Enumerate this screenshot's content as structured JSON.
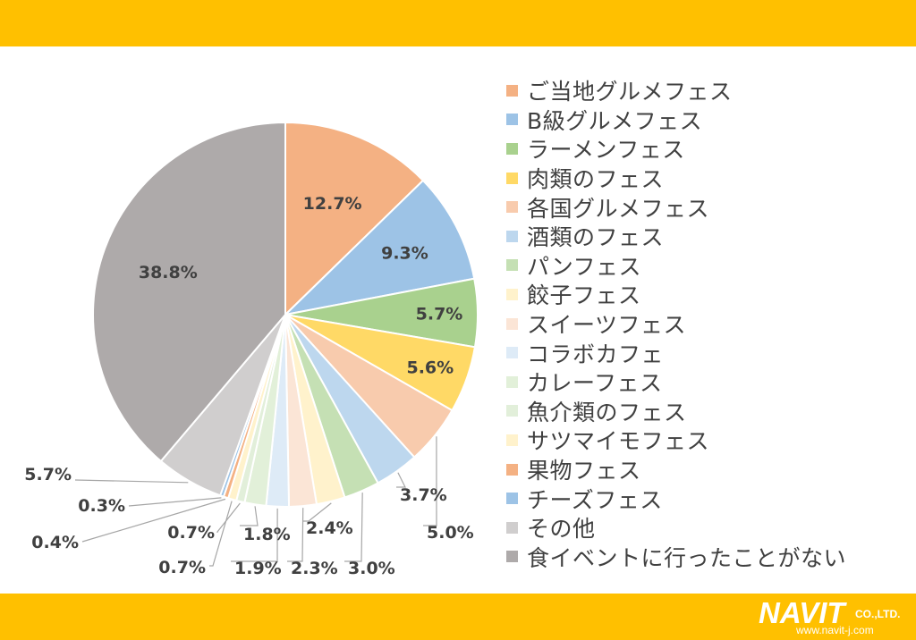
{
  "chart_data": {
    "type": "pie",
    "title": "",
    "start_angle_deg": 0,
    "direction": "clockwise",
    "legend_position": "right",
    "slices": [
      {
        "label": "ご当地グルメフェス",
        "value": 12.7,
        "display": "12.7%",
        "color": "#f4b183"
      },
      {
        "label": "B級グルメフェス",
        "value": 9.3,
        "display": "9.3%",
        "color": "#9dc3e6"
      },
      {
        "label": "ラーメンフェス",
        "value": 5.7,
        "display": "5.7%",
        "color": "#a9d18e"
      },
      {
        "label": "肉類のフェス",
        "value": 5.6,
        "display": "5.6%",
        "color": "#ffd966"
      },
      {
        "label": "各国グルメフェス",
        "value": 5.0,
        "display": "5.0%",
        "color": "#f8cbad"
      },
      {
        "label": "酒類のフェス",
        "value": 3.7,
        "display": "3.7%",
        "color": "#bdd7ee"
      },
      {
        "label": "パンフェス",
        "value": 3.0,
        "display": "3.0%",
        "color": "#c5e0b4"
      },
      {
        "label": "餃子フェス",
        "value": 2.4,
        "display": "2.4%",
        "color": "#fff2cc"
      },
      {
        "label": "スイーツフェス",
        "value": 2.3,
        "display": "2.3%",
        "color": "#fbe5d6"
      },
      {
        "label": "コラボカフェ",
        "value": 1.9,
        "display": "1.9%",
        "color": "#deebf7"
      },
      {
        "label": "カレーフェス",
        "value": 1.8,
        "display": "1.8%",
        "color": "#e2f0d9"
      },
      {
        "label": "魚介類のフェス",
        "value": 0.7,
        "display": "0.7%",
        "color": "#e2efda"
      },
      {
        "label": "サツマイモフェス",
        "value": 0.7,
        "display": "0.7%",
        "color": "#fff2cc"
      },
      {
        "label": "果物フェス",
        "value": 0.4,
        "display": "0.4%",
        "color": "#f4b183"
      },
      {
        "label": "チーズフェス",
        "value": 0.3,
        "display": "0.3%",
        "color": "#9dc3e6"
      },
      {
        "label": "その他",
        "value": 5.7,
        "display": "5.7%",
        "color": "#d0cece"
      },
      {
        "label": "食イベントに行ったことがない",
        "value": 38.8,
        "display": "38.8%",
        "color": "#aeaaaa"
      }
    ]
  },
  "brand": {
    "name": "NAVIT",
    "suffix": "CO.,LTD.",
    "url": "www.navit-j.com",
    "band_color": "#ffc000"
  }
}
